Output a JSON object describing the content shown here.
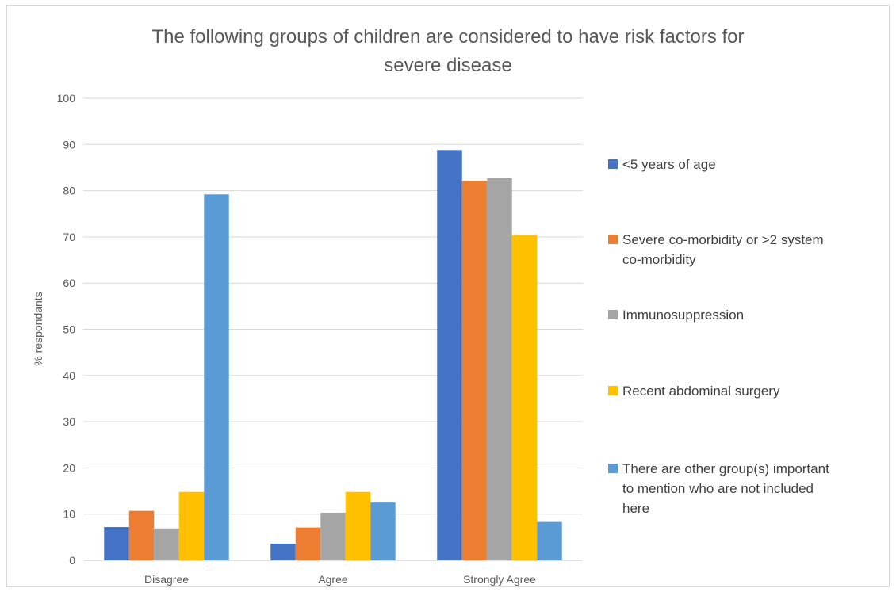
{
  "chart_data": {
    "type": "bar",
    "title_lines": [
      "The following groups of children are considered to have risk factors for",
      "severe disease"
    ],
    "xlabel": "",
    "ylabel": "% respondants",
    "ylim": [
      0,
      100
    ],
    "yticks": [
      0,
      10,
      20,
      30,
      40,
      50,
      60,
      70,
      80,
      90,
      100
    ],
    "grid": true,
    "legend_position": "right",
    "categories": [
      "Disagree",
      "Agree",
      "Strongly Agree"
    ],
    "series": [
      {
        "name": "<5 years of age",
        "legend_lines": [
          "<5 years of age"
        ],
        "color": "#4472C4",
        "values": [
          7.2,
          3.6,
          88.8
        ]
      },
      {
        "name": "Severe co-morbidity or >2 system co-morbidity",
        "legend_lines": [
          "Severe co-morbidity or >2 system",
          "co-morbidity"
        ],
        "color": "#ED7D31",
        "values": [
          10.7,
          7.1,
          82.1
        ]
      },
      {
        "name": "Immunosuppression",
        "legend_lines": [
          "Immunosuppression"
        ],
        "color": "#A5A5A5",
        "values": [
          6.9,
          10.3,
          82.7
        ]
      },
      {
        "name": "Recent abdominal surgery",
        "legend_lines": [
          "Recent abdominal surgery"
        ],
        "color": "#FFC000",
        "values": [
          14.8,
          14.8,
          70.4
        ]
      },
      {
        "name": "There are other group(s) important to mention who are not included here",
        "legend_lines": [
          "There are other group(s) important",
          "to mention who are not included",
          "here"
        ],
        "color": "#5B9BD5",
        "values": [
          79.2,
          12.5,
          8.3
        ]
      }
    ]
  }
}
